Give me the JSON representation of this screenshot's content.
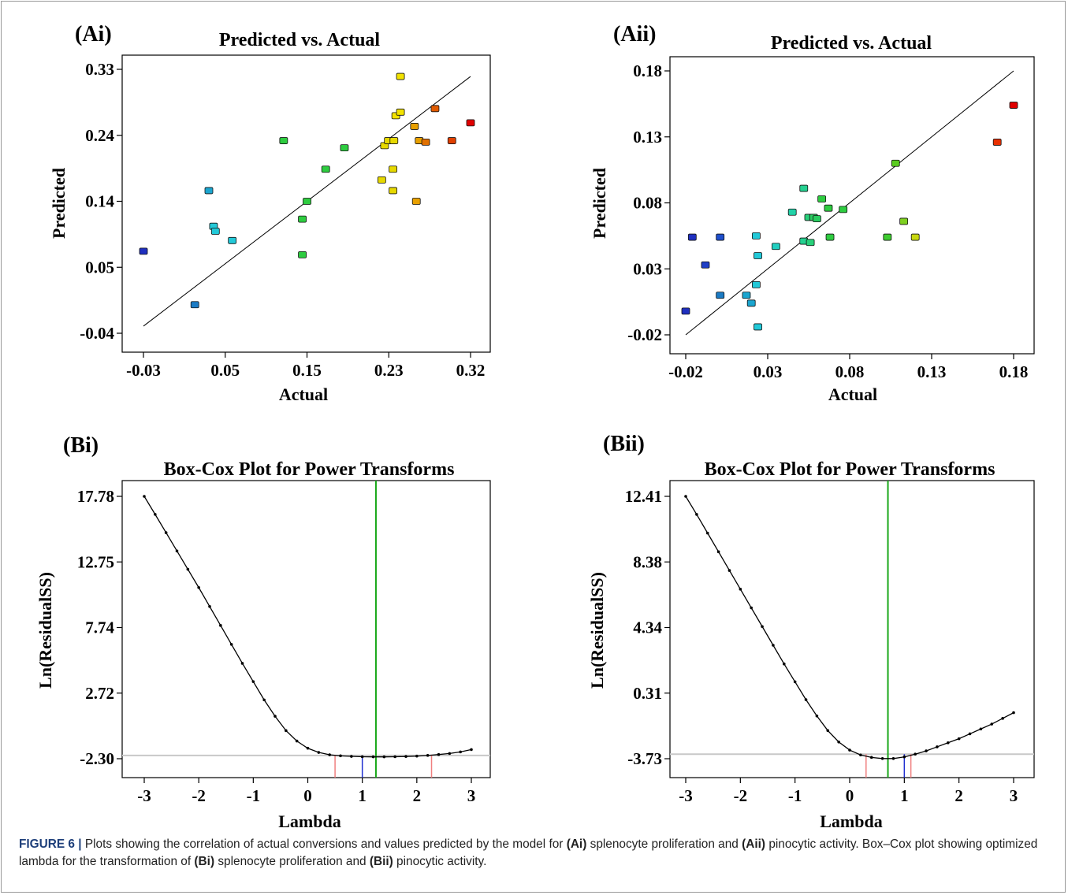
{
  "caption": {
    "figure_label": "FIGURE 6 |",
    "text_1": " Plots showing the correlation of actual conversions and values predicted by the model for ",
    "ref_ai": "(Ai)",
    "text_2": " splenocyte proliferation and ",
    "ref_aii": "(Aii)",
    "text_3": " pinocytic activity. Box–Cox plot showing optimized lambda for the transformation of ",
    "ref_bi": "(Bi)",
    "text_4": " splenocyte proliferation and ",
    "ref_bii": "(Bii)",
    "text_5": " pinocytic activity."
  },
  "chart_data": [
    {
      "panel": "(Ai)",
      "type": "scatter",
      "title": "Predicted vs. Actual",
      "xlabel": "Actual",
      "ylabel": "Predicted",
      "xlim": [
        -0.03,
        0.32
      ],
      "ylim": [
        -0.04,
        0.33
      ],
      "xticks": [
        "-0.03",
        "0.05",
        "0.15",
        "0.23",
        "0.32"
      ],
      "yticks": [
        "-0.04",
        "0.05",
        "0.14",
        "0.24",
        "0.33"
      ],
      "reference_line": [
        [
          -0.03,
          -0.03
        ],
        [
          0.32,
          0.32
        ]
      ],
      "points": [
        {
          "x": -0.03,
          "y": 0.075,
          "color": "#1f2fbf"
        },
        {
          "x": 0.025,
          "y": 0.0,
          "color": "#1c7bc4"
        },
        {
          "x": 0.04,
          "y": 0.16,
          "color": "#1ba5cf"
        },
        {
          "x": 0.045,
          "y": 0.11,
          "color": "#22c9d8"
        },
        {
          "x": 0.047,
          "y": 0.103,
          "color": "#22c9d8"
        },
        {
          "x": 0.065,
          "y": 0.09,
          "color": "#22c9d8"
        },
        {
          "x": 0.12,
          "y": 0.23,
          "color": "#2ecc40"
        },
        {
          "x": 0.14,
          "y": 0.12,
          "color": "#2ecc40"
        },
        {
          "x": 0.14,
          "y": 0.07,
          "color": "#2ecc40"
        },
        {
          "x": 0.145,
          "y": 0.145,
          "color": "#2ecc40"
        },
        {
          "x": 0.165,
          "y": 0.19,
          "color": "#2ecc40"
        },
        {
          "x": 0.185,
          "y": 0.22,
          "color": "#2ecc40"
        },
        {
          "x": 0.225,
          "y": 0.175,
          "color": "#e6d800"
        },
        {
          "x": 0.228,
          "y": 0.223,
          "color": "#e6d800"
        },
        {
          "x": 0.232,
          "y": 0.23,
          "color": "#e6d800"
        },
        {
          "x": 0.237,
          "y": 0.19,
          "color": "#e6d800"
        },
        {
          "x": 0.237,
          "y": 0.16,
          "color": "#e6d800"
        },
        {
          "x": 0.238,
          "y": 0.23,
          "color": "#e6d800"
        },
        {
          "x": 0.24,
          "y": 0.265,
          "color": "#f2e200"
        },
        {
          "x": 0.245,
          "y": 0.27,
          "color": "#f2e200"
        },
        {
          "x": 0.245,
          "y": 0.32,
          "color": "#f2e200"
        },
        {
          "x": 0.26,
          "y": 0.25,
          "color": "#e8a000"
        },
        {
          "x": 0.262,
          "y": 0.145,
          "color": "#e8a000"
        },
        {
          "x": 0.265,
          "y": 0.23,
          "color": "#e8a000"
        },
        {
          "x": 0.272,
          "y": 0.228,
          "color": "#e07000"
        },
        {
          "x": 0.282,
          "y": 0.275,
          "color": "#e05a00"
        },
        {
          "x": 0.3,
          "y": 0.23,
          "color": "#e04000"
        },
        {
          "x": 0.32,
          "y": 0.255,
          "color": "#e00000"
        }
      ]
    },
    {
      "panel": "(Aii)",
      "type": "scatter",
      "title": "Predicted vs. Actual",
      "xlabel": "Actual",
      "ylabel": "Predicted",
      "xlim": [
        -0.02,
        0.18
      ],
      "ylim": [
        -0.02,
        0.18
      ],
      "xticks": [
        "-0.02",
        "0.03",
        "0.08",
        "0.13",
        "0.18"
      ],
      "yticks": [
        "-0.02",
        "0.03",
        "0.08",
        "0.13",
        "0.18"
      ],
      "reference_line": [
        [
          -0.02,
          -0.02
        ],
        [
          0.18,
          0.18
        ]
      ],
      "points": [
        {
          "x": -0.02,
          "y": -0.002,
          "color": "#1f2fbf"
        },
        {
          "x": -0.016,
          "y": 0.054,
          "color": "#1f2fbf"
        },
        {
          "x": -0.008,
          "y": 0.033,
          "color": "#1f3fc6"
        },
        {
          "x": 0.001,
          "y": 0.054,
          "color": "#1f4fcc"
        },
        {
          "x": 0.001,
          "y": 0.01,
          "color": "#1c7bc4"
        },
        {
          "x": 0.017,
          "y": 0.01,
          "color": "#1ba5cf"
        },
        {
          "x": 0.02,
          "y": 0.004,
          "color": "#1ba5cf"
        },
        {
          "x": 0.023,
          "y": 0.055,
          "color": "#22c9d8"
        },
        {
          "x": 0.023,
          "y": 0.018,
          "color": "#22c9d8"
        },
        {
          "x": 0.024,
          "y": 0.04,
          "color": "#22c9d8"
        },
        {
          "x": 0.024,
          "y": -0.014,
          "color": "#22c9d8"
        },
        {
          "x": 0.035,
          "y": 0.047,
          "color": "#22cfc0"
        },
        {
          "x": 0.045,
          "y": 0.073,
          "color": "#22d2a8"
        },
        {
          "x": 0.052,
          "y": 0.091,
          "color": "#25d090"
        },
        {
          "x": 0.052,
          "y": 0.051,
          "color": "#25d090"
        },
        {
          "x": 0.055,
          "y": 0.069,
          "color": "#28d07a"
        },
        {
          "x": 0.056,
          "y": 0.05,
          "color": "#28d07a"
        },
        {
          "x": 0.058,
          "y": 0.069,
          "color": "#2acc60"
        },
        {
          "x": 0.06,
          "y": 0.068,
          "color": "#2acc60"
        },
        {
          "x": 0.063,
          "y": 0.083,
          "color": "#2ecc40"
        },
        {
          "x": 0.067,
          "y": 0.076,
          "color": "#2ecc40"
        },
        {
          "x": 0.068,
          "y": 0.054,
          "color": "#2ecc40"
        },
        {
          "x": 0.076,
          "y": 0.075,
          "color": "#2ecc40"
        },
        {
          "x": 0.103,
          "y": 0.054,
          "color": "#3ecc30"
        },
        {
          "x": 0.108,
          "y": 0.11,
          "color": "#5acc20"
        },
        {
          "x": 0.113,
          "y": 0.066,
          "color": "#7ed020"
        },
        {
          "x": 0.12,
          "y": 0.054,
          "color": "#c8d810"
        },
        {
          "x": 0.17,
          "y": 0.126,
          "color": "#e83000"
        },
        {
          "x": 0.18,
          "y": 0.154,
          "color": "#e00000"
        }
      ]
    },
    {
      "panel": "(Bi)",
      "type": "line",
      "title": "Box-Cox Plot for Power Transforms",
      "xlabel": "Lambda",
      "ylabel": "Ln(ResidualSS)",
      "xlim": [
        -3,
        3
      ],
      "ylim": [
        -2.3,
        17.78
      ],
      "xticks": [
        "-3",
        "-2",
        "-1",
        "0",
        "1",
        "2",
        "3"
      ],
      "yticks": [
        "-2.30",
        "2.72",
        "7.74",
        "12.75",
        "17.78"
      ],
      "min_ln_residualss": -2.05,
      "current_lambda": 1,
      "best_lambda": 1.25,
      "ci_low": 0.5,
      "ci_high": 2.27,
      "x": [
        -3,
        -2.8,
        -2.6,
        -2.4,
        -2.2,
        -2.0,
        -1.8,
        -1.6,
        -1.4,
        -1.2,
        -1.0,
        -0.8,
        -0.6,
        -0.4,
        -0.2,
        0.0,
        0.2,
        0.4,
        0.6,
        0.8,
        1.0,
        1.2,
        1.4,
        1.6,
        1.8,
        2.0,
        2.2,
        2.4,
        2.6,
        2.8,
        3.0
      ],
      "y": [
        17.78,
        16.4,
        15.0,
        13.6,
        12.2,
        10.8,
        9.35,
        7.9,
        6.45,
        5.0,
        3.6,
        2.2,
        0.95,
        -0.15,
        -0.95,
        -1.5,
        -1.82,
        -2.0,
        -2.08,
        -2.12,
        -2.15,
        -2.16,
        -2.16,
        -2.15,
        -2.13,
        -2.1,
        -2.05,
        -1.98,
        -1.9,
        -1.78,
        -1.6
      ]
    },
    {
      "panel": "(Bii)",
      "type": "line",
      "title": "Box-Cox Plot for Power Transforms",
      "xlabel": "Lambda",
      "ylabel": "Ln(ResidualSS)",
      "xlim": [
        -3,
        3
      ],
      "ylim": [
        -3.73,
        12.41
      ],
      "xticks": [
        "-3",
        "-2",
        "-1",
        "0",
        "1",
        "2",
        "3"
      ],
      "yticks": [
        "-3.73",
        "0.31",
        "4.34",
        "8.38",
        "12.41"
      ],
      "min_ln_residualss": -3.45,
      "current_lambda": 1,
      "best_lambda": 0.7,
      "ci_low": 0.3,
      "ci_high": 1.12,
      "x": [
        -3,
        -2.8,
        -2.6,
        -2.4,
        -2.2,
        -2.0,
        -1.8,
        -1.6,
        -1.4,
        -1.2,
        -1.0,
        -0.8,
        -0.6,
        -0.4,
        -0.2,
        0.0,
        0.2,
        0.4,
        0.6,
        0.8,
        1.0,
        1.2,
        1.4,
        1.6,
        1.8,
        2.0,
        2.2,
        2.4,
        2.6,
        2.8,
        3.0
      ],
      "y": [
        12.41,
        11.3,
        10.15,
        9.0,
        7.85,
        6.7,
        5.55,
        4.4,
        3.25,
        2.1,
        1.0,
        -0.1,
        -1.1,
        -2.0,
        -2.7,
        -3.2,
        -3.5,
        -3.65,
        -3.72,
        -3.72,
        -3.62,
        -3.45,
        -3.25,
        -3.0,
        -2.75,
        -2.5,
        -2.2,
        -1.9,
        -1.6,
        -1.25,
        -0.9
      ]
    }
  ]
}
